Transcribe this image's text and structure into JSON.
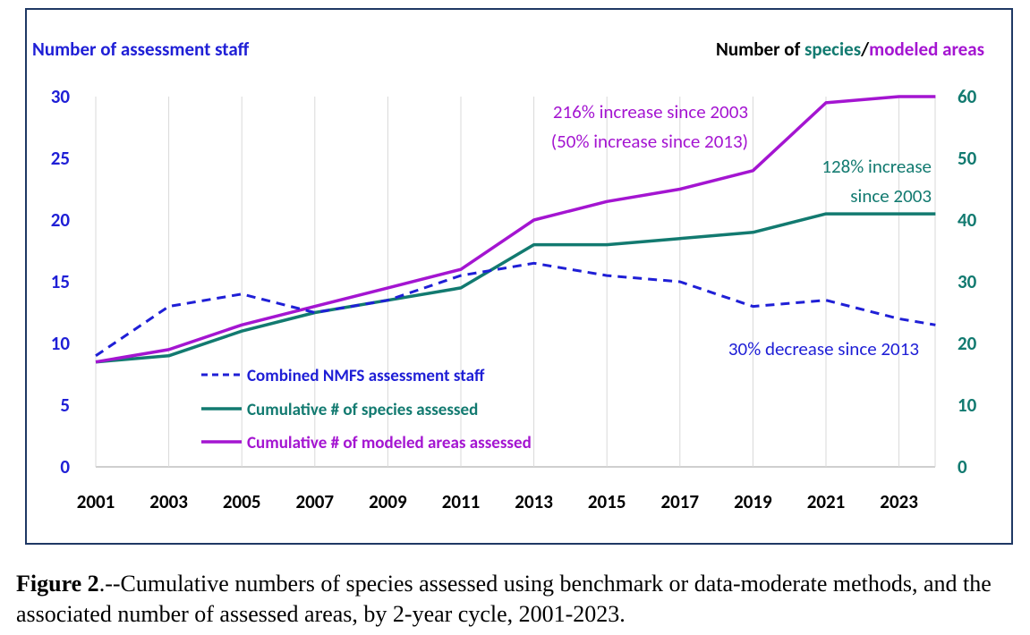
{
  "chart_data": {
    "type": "line",
    "left_axis_title": "Number of assessment staff",
    "right_axis_title_prefix": "Number of ",
    "right_axis_title_species": "species",
    "right_axis_title_sep": "/",
    "right_axis_title_areas": "modeled areas",
    "x": [
      2001,
      2003,
      2005,
      2007,
      2009,
      2011,
      2013,
      2015,
      2017,
      2019,
      2021,
      2023,
      2024
    ],
    "x_tick_labels": [
      "2001",
      "2003",
      "2005",
      "2007",
      "2009",
      "2011",
      "2013",
      "2015",
      "2017",
      "2019",
      "2021",
      "2023"
    ],
    "left_ylim": [
      0,
      30
    ],
    "left_ticks": [
      "0",
      "5",
      "10",
      "15",
      "20",
      "25",
      "30"
    ],
    "right_ylim": [
      0,
      60
    ],
    "right_ticks": [
      "0",
      "10",
      "20",
      "30",
      "40",
      "50",
      "60"
    ],
    "grid": "vertical",
    "legend_position": "bottom-left",
    "series": [
      {
        "name": "Combined NMFS assessment staff",
        "axis": "left",
        "color": "#1f1fd6",
        "style": "dashed",
        "values": [
          9,
          13,
          14,
          12.5,
          13.5,
          15.5,
          16.5,
          15.5,
          15,
          13,
          13.5,
          12,
          11.5
        ]
      },
      {
        "name": "Cumulative # of species assessed",
        "axis": "right",
        "color": "#127a70",
        "style": "solid",
        "values": [
          17,
          18,
          22,
          25,
          27,
          29,
          36,
          36,
          37,
          38,
          41,
          41,
          41
        ]
      },
      {
        "name": "Cumulative # of modeled areas assessed",
        "axis": "right",
        "color": "#a415d1",
        "style": "solid",
        "values": [
          17,
          19,
          23,
          26,
          29,
          32,
          40,
          43,
          45,
          48,
          59,
          60,
          60
        ]
      }
    ],
    "annotations": {
      "areas_line1": "216% increase since 2003",
      "areas_line2": "(50% increase since 2013)",
      "species_line1": "128% increase",
      "species_line2": "since 2003",
      "staff": "30% decrease since 2013"
    }
  },
  "caption": {
    "label": "Figure 2",
    "text": ".--Cumulative numbers of species assessed using benchmark or data-moderate methods, and the associated number of assessed areas, by 2-year cycle, 2001-2023."
  }
}
